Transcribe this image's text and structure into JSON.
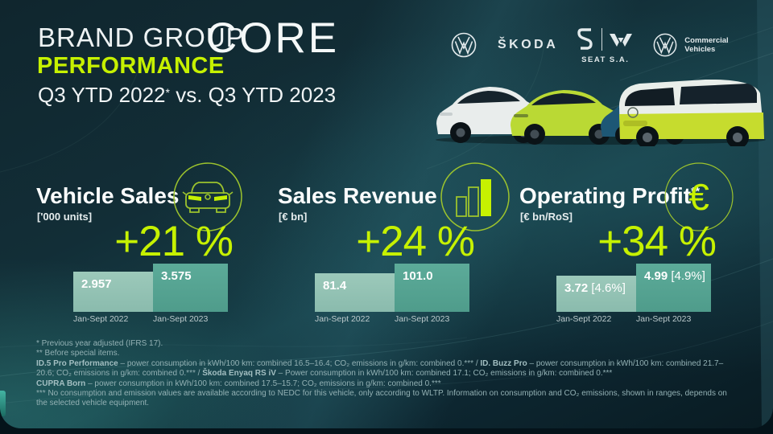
{
  "slide": {
    "title_line1": "BRAND GROUP",
    "title_core": "CORE",
    "title_line2": "PERFORMANCE",
    "subtitle_main": "Q3 YTD 2022",
    "subtitle_sup": "*",
    "subtitle_rest": " vs. Q3 YTD 2023"
  },
  "logos": {
    "skoda": "ŠKODA",
    "seat_label": "SEAT S.A.",
    "vwcv_line1": "Commercial",
    "vwcv_line2": "Vehicles"
  },
  "colors": {
    "accent_lime": "#c6f101",
    "bar_2022": "#94c3b5",
    "bar_2023": "#55a392",
    "background": "#10262e"
  },
  "chart_data": [
    {
      "type": "bar",
      "title": "Vehicle Sales",
      "title_sup": "",
      "unit": "['000 units]",
      "change": "+21 %",
      "icon": "car-icon",
      "categories": [
        "Jan-Sept 2022",
        "Jan-Sept 2023"
      ],
      "values": [
        2.957,
        3.575
      ],
      "value_labels": [
        "2.957",
        "3.575"
      ],
      "value_suffixes": [
        "",
        ""
      ]
    },
    {
      "type": "bar",
      "title": "Sales Revenue",
      "title_sup": "",
      "unit": "[€ bn]",
      "change": "+24 %",
      "icon": "bar-chart-icon",
      "categories": [
        "Jan-Sept 2022",
        "Jan-Sept 2023"
      ],
      "values": [
        81.4,
        101.0
      ],
      "value_labels": [
        "81.4",
        "101.0"
      ],
      "value_suffixes": [
        "",
        ""
      ]
    },
    {
      "type": "bar",
      "title": "Operating Profit",
      "title_sup": "**",
      "unit": "[€ bn/RoS]",
      "change": "+34 %",
      "icon": "euro-icon",
      "categories": [
        "Jan-Sept 2022",
        "Jan-Sept 2023"
      ],
      "values": [
        3.72,
        4.99
      ],
      "value_labels": [
        "3.72",
        "4.99"
      ],
      "value_suffixes": [
        " [4.6%]",
        " [4.9%]"
      ]
    }
  ],
  "footnotes": {
    "line1": "* Previous year adjusted (IFRS 17).",
    "line2": "** Before special items.",
    "line3a_bold": "ID.5 Pro Performance",
    "line3b": " – power consumption in kWh/100 km: combined 16.5–16.4; CO₂ emissions in g/km: combined 0.*** /  ",
    "line3c_bold": "ID. Buzz Pro",
    "line3d": " – power consumption in kWh/100 km: combined 21.7–",
    "line4a": "20.6; CO₂ emissions in g/km: combined 0.*** /  ",
    "line4b_bold": "Škoda Enyaq RS iV",
    "line4c": " – Power consumption in kWh/100 km: combined 17.1; CO₂ emissions in g/km: combined 0.***",
    "line5a_bold": "CUPRA Born",
    "line5b": " – power consumption in kWh/100 km: combined 17.5–15.7; CO₂ emissions in g/km: combined 0.***",
    "line6": "*** No consumption and emission values are available according to NEDC for this vehicle, only according to WLTP. Information on consumption and CO₂ emissions, shown in ranges, depends on",
    "line7": "the selected vehicle equipment."
  }
}
